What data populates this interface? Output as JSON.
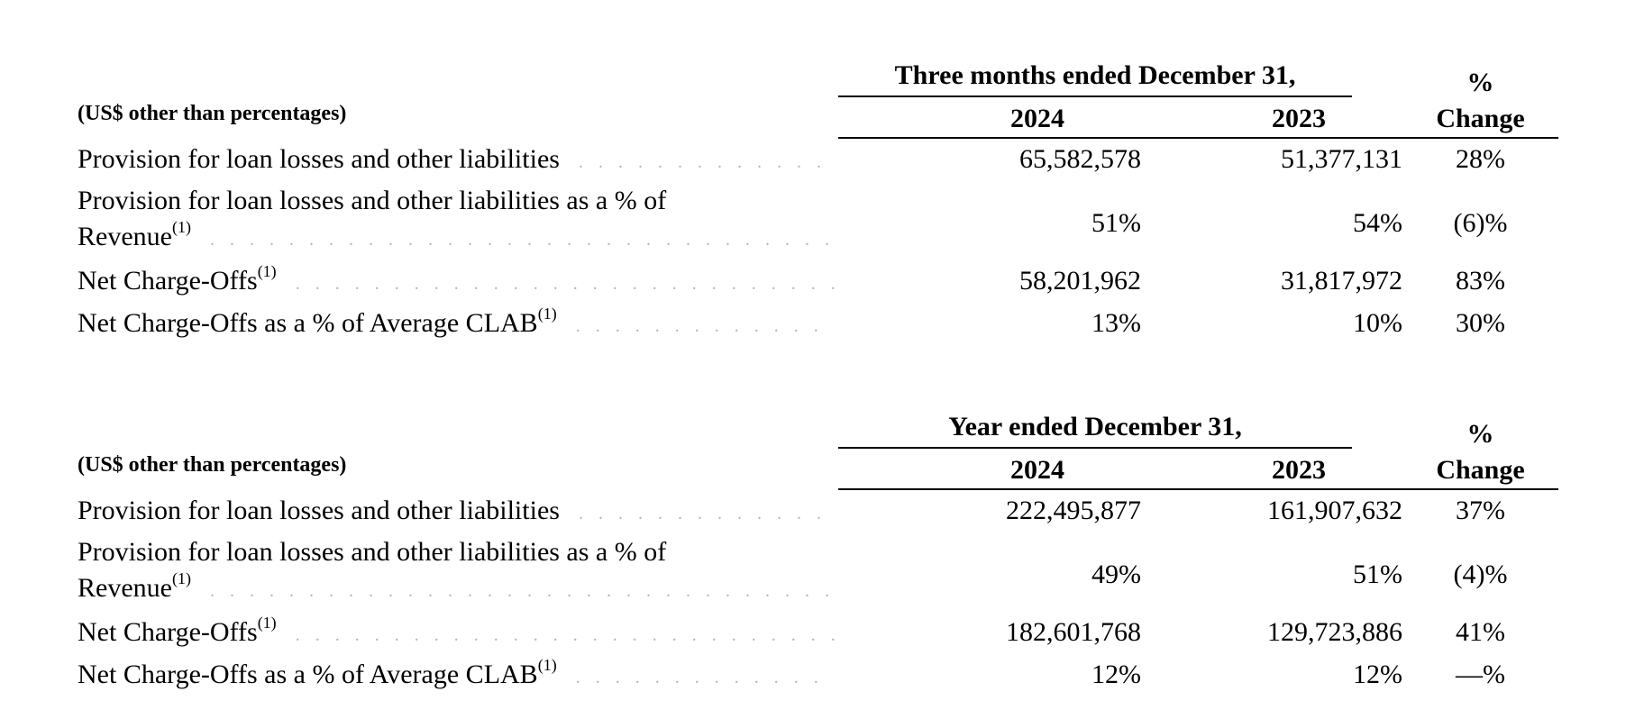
{
  "tables": [
    {
      "period_title": "Three months ended December 31,",
      "units_label": "(US$ other than percentages)",
      "year_a": "2024",
      "year_b": "2023",
      "change_top": "%",
      "change_bottom": "Change",
      "rows": [
        {
          "label": "Provision for loan losses and other liabilities",
          "note": "",
          "a": "65,582,578",
          "b": "51,377,131",
          "change": "28%"
        },
        {
          "label_line1": "Provision for loan losses and other liabilities as a % of",
          "label_line2": "Revenue",
          "note": "(1)",
          "a": "51%",
          "b": "54%",
          "change": "(6)%"
        },
        {
          "label": "Net Charge-Offs",
          "note": "(1)",
          "a": "58,201,962",
          "b": "31,817,972",
          "change": "83%"
        },
        {
          "label": "Net Charge-Offs as a % of Average CLAB",
          "note": "(1)",
          "a": "13%",
          "b": "10%",
          "change": "30%"
        }
      ]
    },
    {
      "period_title": "Year ended December 31,",
      "units_label": "(US$ other than percentages)",
      "year_a": "2024",
      "year_b": "2023",
      "change_top": "%",
      "change_bottom": "Change",
      "rows": [
        {
          "label": "Provision for loan losses and other liabilities",
          "note": "",
          "a": "222,495,877",
          "b": "161,907,632",
          "change": "37%"
        },
        {
          "label_line1": "Provision for loan losses and other liabilities as a % of",
          "label_line2": "Revenue",
          "note": "(1)",
          "a": "49%",
          "b": "51%",
          "change": "(4)%"
        },
        {
          "label": "Net Charge-Offs",
          "note": "(1)",
          "a": "182,601,768",
          "b": "129,723,886",
          "change": "41%"
        },
        {
          "label": "Net Charge-Offs as a % of Average CLAB",
          "note": "(1)",
          "a": "12%",
          "b": "12%",
          "change": "—%"
        }
      ]
    }
  ]
}
